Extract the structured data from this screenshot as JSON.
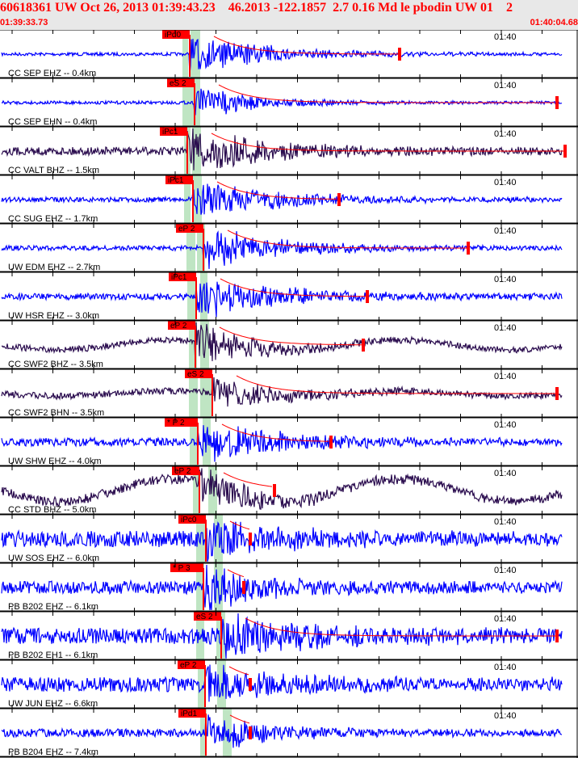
{
  "header": {
    "title": "60618361 UW Oct 26, 2013 01:39:43.23    46.2013 -122.1857  2.7 0.16 Md le pbodin UW 01    2",
    "start_time": "01:39:33.73",
    "end_time": "01:40:04.68"
  },
  "time_mark": "01:40",
  "colors": {
    "short_period": "#0000ff",
    "broadband": "#2b0d4f",
    "pick": "#ff0000",
    "window": "#bfe5c3"
  },
  "traces": [
    {
      "station": "CC SEP EHZ -- 0.4km",
      "pick": "iPd0",
      "type": "short_period"
    },
    {
      "station": "CC SEP EHN -- 0.4km",
      "pick": "eS 2",
      "type": "short_period"
    },
    {
      "station": "CC VALT BHZ -- 1.5km",
      "pick": "iPc1",
      "type": "broadband"
    },
    {
      "station": "CC SUG EHZ -- 1.7km",
      "pick": "iPc1",
      "type": "short_period"
    },
    {
      "station": "UW EDM EHZ -- 2.7km",
      "pick": "eP 2",
      "type": "short_period"
    },
    {
      "station": "UW HSR EHZ -- 3.0km",
      "pick": "iPc1",
      "type": "short_period"
    },
    {
      "station": "CC SWF2 BHZ -- 3.5km",
      "pick": "eP 2",
      "type": "broadband"
    },
    {
      "station": "CC SWF2 BHN -- 3.5km",
      "pick": "eS 2",
      "type": "broadband"
    },
    {
      "station": "UW SHW EHZ -- 4.0km",
      "pick": "* P 2",
      "type": "short_period"
    },
    {
      "station": "CC STD BHZ -- 5.0km",
      "pick": "eP 2",
      "type": "broadband"
    },
    {
      "station": "UW SOS EHZ -- 6.0km",
      "pick": "iPc0",
      "type": "short_period"
    },
    {
      "station": "PB B202 EHZ -- 6.1km",
      "pick": "* P 3",
      "type": "short_period"
    },
    {
      "station": "PB B202 EH1 -- 6.1km",
      "pick": "eS 2",
      "type": "short_period"
    },
    {
      "station": "UW JUN EHZ -- 6.6km",
      "pick": "eP 2",
      "type": "short_period"
    },
    {
      "station": "PB B204 EHZ -- 7.4km",
      "pick": "iPd1",
      "type": "short_period"
    }
  ]
}
